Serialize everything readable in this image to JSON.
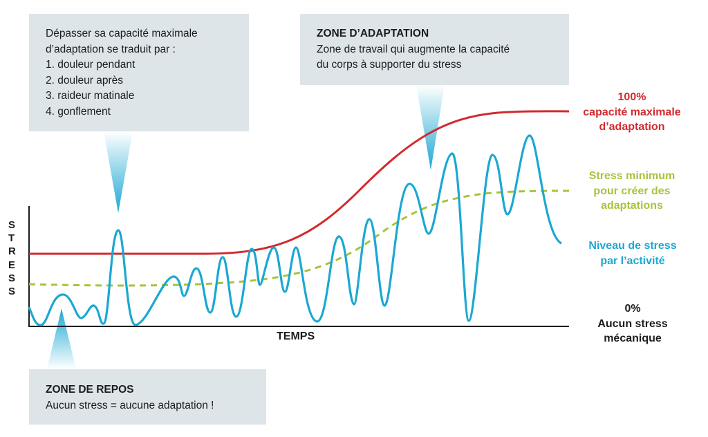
{
  "callouts": {
    "overload": {
      "lines": [
        "Dépasser sa capacité maximale",
        "d’adaptation se traduit par :",
        "1.  douleur pendant",
        "2. douleur après",
        "3. raideur matinale",
        "4. gonflement"
      ]
    },
    "adaptation": {
      "title": "ZONE D’ADAPTATION",
      "lines": [
        "Zone de travail qui augmente la capacité",
        "du corps à supporter du stress"
      ]
    },
    "rest": {
      "title": "ZONE DE REPOS",
      "lines": [
        "Aucun stress = aucune adaptation !"
      ]
    }
  },
  "axes": {
    "y_label": "STRESS",
    "x_label": "TEMPS"
  },
  "legend": {
    "max_capacity": [
      "100%",
      "capacité maximale",
      "d’adaptation"
    ],
    "min_stress": [
      "Stress minimum",
      "pour créer des",
      "adaptations"
    ],
    "activity": [
      "Niveau de stress",
      "par l’activité"
    ],
    "zero": [
      "0%",
      "Aucun stress",
      "mécanique"
    ]
  },
  "colors": {
    "max_capacity": "#d12a2e",
    "min_stress": "#a6c43a",
    "activity": "#1ba8d2",
    "callout_bg": "#dde5e9",
    "axis": "#1c1c1c"
  }
}
